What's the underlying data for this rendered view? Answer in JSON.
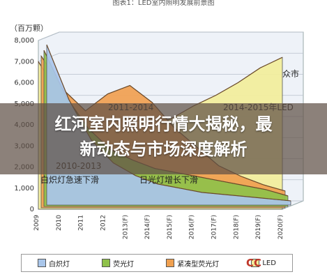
{
  "caption": "图表1：LED室内照明发展前景图",
  "headline_lines": [
    "红河室内照明行情大揭秘，最",
    "新动态与市场深度解析"
  ],
  "chart_data": {
    "type": "area",
    "ylabel": "（百万颗）",
    "ylim": [
      0,
      8000
    ],
    "yticks": [
      0,
      1000,
      2000,
      3000,
      4000,
      5000,
      6000,
      7000,
      8000
    ],
    "ytick_labels": [
      "0",
      "1,000",
      "2,000",
      "3,000",
      "4,000",
      "5,000",
      "6,000",
      "7,000",
      "8,000"
    ],
    "categories": [
      "2009",
      "2010",
      "2011",
      "2012",
      "2013(F)",
      "2014(F)",
      "2015(F)",
      "2016(F)",
      "2017(F)",
      "2018(F)",
      "2019(F)",
      "2020(F)"
    ],
    "series": [
      {
        "name": "白炽灯",
        "color": "#a9c6ea",
        "values": [
          7600,
          5000,
          3100,
          2000,
          1400,
          1000,
          800,
          600,
          500,
          400,
          300,
          200
        ]
      },
      {
        "name": "荧光灯",
        "color": "#8fc14a",
        "values": [
          7400,
          5200,
          3700,
          2700,
          2200,
          1800,
          1600,
          1400,
          1200,
          1000,
          800,
          500
        ]
      },
      {
        "name": "紧凑型荧光灯",
        "color": "#f0a050",
        "values": [
          7200,
          5600,
          4600,
          5400,
          5800,
          5000,
          3800,
          2900,
          2000,
          1500,
          1100,
          800
        ]
      },
      {
        "name": "LED",
        "color": "#f2ee9a",
        "values": [
          7000,
          5300,
          4200,
          3800,
          3700,
          3900,
          4300,
          4900,
          5400,
          6000,
          6700,
          7200
        ]
      }
    ],
    "annotations": [
      {
        "text": "2011-2014",
        "at": "2013(F)"
      },
      {
        "text": "2014-2015年LED",
        "at": "2018(F)"
      },
      {
        "text": "众市",
        "at": "2019(F)"
      },
      {
        "text": "2010-2013",
        "at": "2011"
      },
      {
        "text": "白炽灯急速下滑",
        "at": "2010"
      },
      {
        "text": "日光灯增长下滑",
        "at": "2013(F)"
      }
    ],
    "legend": {
      "placement": "bottom"
    },
    "grid": true
  },
  "logo_text": "CC"
}
